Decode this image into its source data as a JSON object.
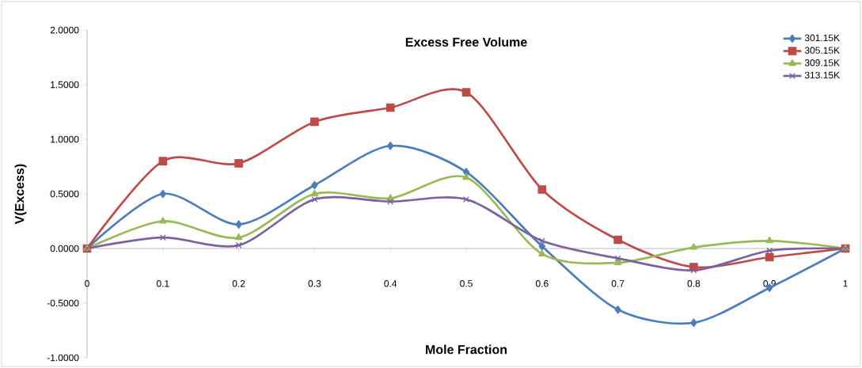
{
  "chart_data": {
    "type": "line",
    "title": "Excess Free Volume",
    "xlabel": "Mole Fraction",
    "ylabel": "V(Excess)",
    "x": [
      0,
      0.1,
      0.2,
      0.3,
      0.4,
      0.5,
      0.6,
      0.7,
      0.8,
      0.9,
      1
    ],
    "series": [
      {
        "name": "301.15K",
        "color": "#4a7ebb",
        "marker": "diamond",
        "values": [
          0,
          0.5,
          0.22,
          0.58,
          0.94,
          0.7,
          0.02,
          -0.56,
          -0.68,
          -0.36,
          0
        ]
      },
      {
        "name": "305.15K",
        "color": "#be4b48",
        "marker": "square",
        "values": [
          0,
          0.8,
          0.78,
          1.16,
          1.29,
          1.43,
          0.54,
          0.08,
          -0.17,
          -0.08,
          0
        ]
      },
      {
        "name": "309.15K",
        "color": "#98b954",
        "marker": "triangle",
        "values": [
          0,
          0.25,
          0.1,
          0.5,
          0.46,
          0.65,
          -0.05,
          -0.13,
          0.01,
          0.07,
          0
        ]
      },
      {
        "name": "313.15K",
        "color": "#7d60a0",
        "marker": "cross",
        "values": [
          0,
          0.1,
          0.03,
          0.45,
          0.43,
          0.45,
          0.07,
          -0.09,
          -0.2,
          -0.02,
          0
        ]
      }
    ],
    "xlim": [
      0,
      1
    ],
    "ylim": [
      -1,
      2
    ],
    "xticks": [
      0,
      0.1,
      0.2,
      0.3,
      0.4,
      0.5,
      0.6,
      0.7,
      0.8,
      0.9,
      1
    ],
    "yticks": [
      {
        "value": -1,
        "label": "-1.0000"
      },
      {
        "value": -0.5,
        "label": "-0.5000"
      },
      {
        "value": 0,
        "label": "0.0000"
      },
      {
        "value": 0.5,
        "label": "0.5000"
      },
      {
        "value": 1,
        "label": "1.0000"
      },
      {
        "value": 1.5,
        "label": "1.5000"
      },
      {
        "value": 2,
        "label": "2.0000"
      }
    ],
    "legend": "top right",
    "line_style": "solid"
  }
}
